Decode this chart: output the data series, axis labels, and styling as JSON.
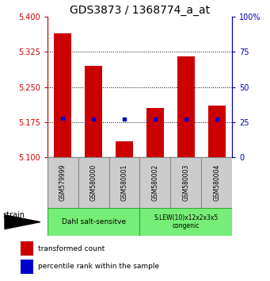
{
  "title": "GDS3873 / 1368774_a_at",
  "samples": [
    "GSM579999",
    "GSM580000",
    "GSM580001",
    "GSM580002",
    "GSM580003",
    "GSM580004"
  ],
  "transformed_count": [
    5.365,
    5.295,
    5.135,
    5.205,
    5.315,
    5.21
  ],
  "percentile_rank": [
    28.0,
    27.5,
    27.0,
    27.0,
    27.5,
    27.0
  ],
  "ylim_left": [
    5.1,
    5.4
  ],
  "ylim_right": [
    0,
    100
  ],
  "yticks_left": [
    5.1,
    5.175,
    5.25,
    5.325,
    5.4
  ],
  "yticks_right": [
    0,
    25,
    50,
    75,
    100
  ],
  "bar_bottom": 5.1,
  "bar_color": "#cc0000",
  "dot_color": "#0000cc",
  "group1_label": "Dahl salt-sensitve",
  "group2_label": "S.LEW(10)x12x2x3x5\ncongenic",
  "group_color": "#77ee77",
  "group_edge_color": "#33aa33",
  "strain_label": "strain",
  "legend_red": "transformed count",
  "legend_blue": "percentile rank within the sample",
  "sample_box_color": "#cccccc",
  "sample_box_edge": "#888888",
  "title_fontsize": 10,
  "left_axis_color": "#cc0000",
  "right_axis_color": "#0000bb"
}
